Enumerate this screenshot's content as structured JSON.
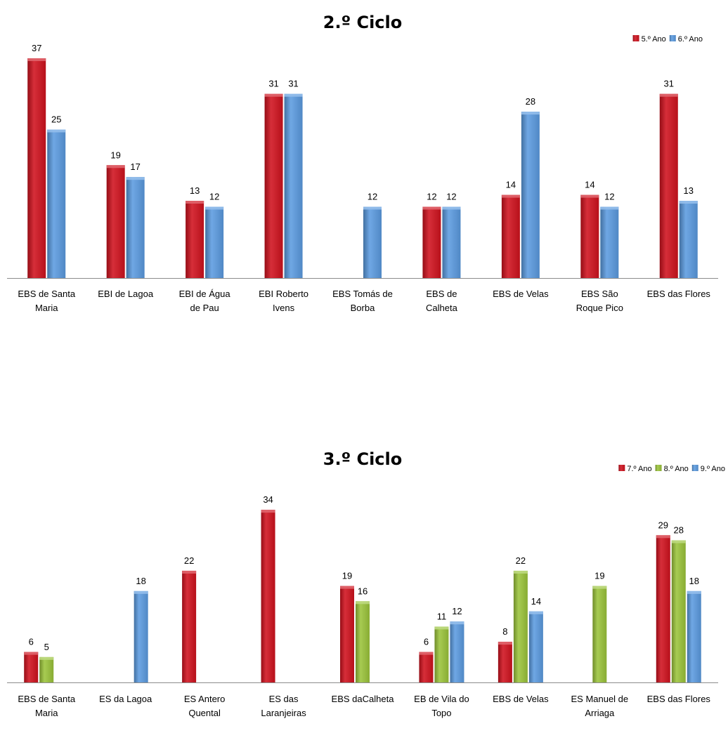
{
  "chart_data": [
    {
      "type": "bar",
      "title": "2.º Ciclo",
      "xlabel": "",
      "ylabel": "",
      "ylim": [
        0,
        40
      ],
      "legend": "top-right",
      "grid": false,
      "categories": [
        [
          "EBS de Santa",
          "Maria"
        ],
        [
          "EBI de Lagoa"
        ],
        [
          "EBI de Água",
          "de Pau"
        ],
        [
          "EBI Roberto",
          "Ivens"
        ],
        [
          "EBS Tomás de",
          "Borba"
        ],
        [
          "EBS de",
          "Calheta"
        ],
        [
          "EBS de Velas"
        ],
        [
          "EBS São",
          "Roque Pico"
        ],
        [
          "EBS das Flores"
        ]
      ],
      "series": [
        {
          "name": "5.º Ano",
          "color": "#d0121e",
          "values": [
            37,
            19,
            13,
            31,
            null,
            12,
            14,
            14,
            31
          ]
        },
        {
          "name": "6.º Ano",
          "color": "#5b9be0",
          "values": [
            25,
            17,
            12,
            31,
            12,
            12,
            28,
            12,
            13
          ]
        }
      ]
    },
    {
      "type": "bar",
      "title": "3.º Ciclo",
      "xlabel": "",
      "ylabel": "",
      "ylim": [
        0,
        40
      ],
      "legend": "top-right",
      "grid": false,
      "categories": [
        [
          "EBS de Santa",
          "Maria"
        ],
        [
          "ES da Lagoa"
        ],
        [
          "ES Antero",
          "Quental"
        ],
        [
          "ES das",
          "Laranjeiras"
        ],
        [
          "EBS daCalheta"
        ],
        [
          "EB de Vila do",
          "Topo"
        ],
        [
          "EBS de Velas"
        ],
        [
          "ES Manuel de",
          "Arriaga"
        ],
        [
          "EBS das Flores"
        ]
      ],
      "series": [
        {
          "name": "7.º Ano",
          "color": "#d0121e",
          "values": [
            6,
            null,
            22,
            34,
            19,
            6,
            8,
            null,
            29
          ]
        },
        {
          "name": "8.º Ano",
          "color": "#9bc43a",
          "values": [
            5,
            null,
            null,
            null,
            16,
            11,
            22,
            19,
            28
          ]
        },
        {
          "name": "9.º Ano",
          "color": "#5b9be0",
          "values": [
            null,
            18,
            null,
            null,
            null,
            12,
            14,
            null,
            18
          ]
        }
      ]
    }
  ]
}
